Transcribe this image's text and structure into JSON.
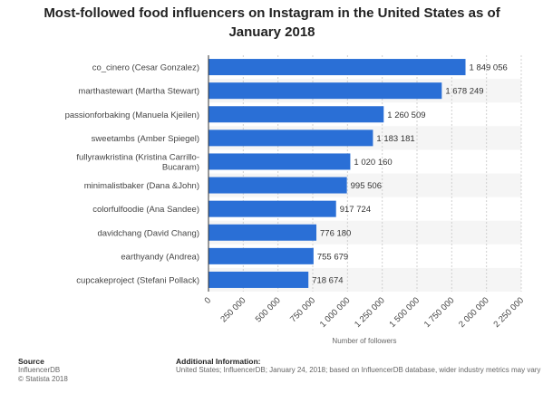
{
  "title": "Most-followed food influencers on Instagram in the United States as of January 2018",
  "chart_data": {
    "type": "bar",
    "orientation": "horizontal",
    "categories": [
      "co_cinero (Cesar Gonzalez)",
      "marthastewart (Martha Stewart)",
      "passionforbaking (Manuela Kjeilen)",
      "sweetambs (Amber Spiegel)",
      "fullyrawkristina (Kristina Carrillo-Bucaram)",
      "minimalistbaker (Dana &John)",
      "colorfulfoodie (Ana Sandee)",
      "davidchang (David Chang)",
      "earthyandy (Andrea)",
      "cupcakeproject (Stefani Pollack)"
    ],
    "values": [
      1849056,
      1678249,
      1260509,
      1183181,
      1020160,
      995506,
      917724,
      776180,
      755679,
      718674
    ],
    "value_labels": [
      "1 849 056",
      "1 678 249",
      "1 260 509",
      "1 183 181",
      "1 020 160",
      "995 506",
      "917 724",
      "776 180",
      "755 679",
      "718 674"
    ],
    "x_ticks": [
      0,
      250000,
      500000,
      750000,
      1000000,
      1250000,
      1500000,
      1750000,
      2000000,
      2250000
    ],
    "x_tick_labels": [
      "0",
      "250 000",
      "500 000",
      "750 000",
      "1 000 000",
      "1 250 000",
      "1 500 000",
      "1 750 000",
      "2 000 000",
      "2 250 000"
    ],
    "xlim": [
      0,
      2250000
    ],
    "xlabel": "Number of followers",
    "ylabel": "",
    "grid": true,
    "bar_color": "#2a6fd6",
    "stripe_color": "#f5f5f5"
  },
  "footer": {
    "source_heading": "Source",
    "source_lines": [
      "InfluencerDB",
      "© Statista 2018"
    ],
    "info_heading": "Additional Information:",
    "info_text": "United States; InfluencerDB; January 24, 2018; based on InfluencerDB database, wider industry metrics may vary"
  }
}
